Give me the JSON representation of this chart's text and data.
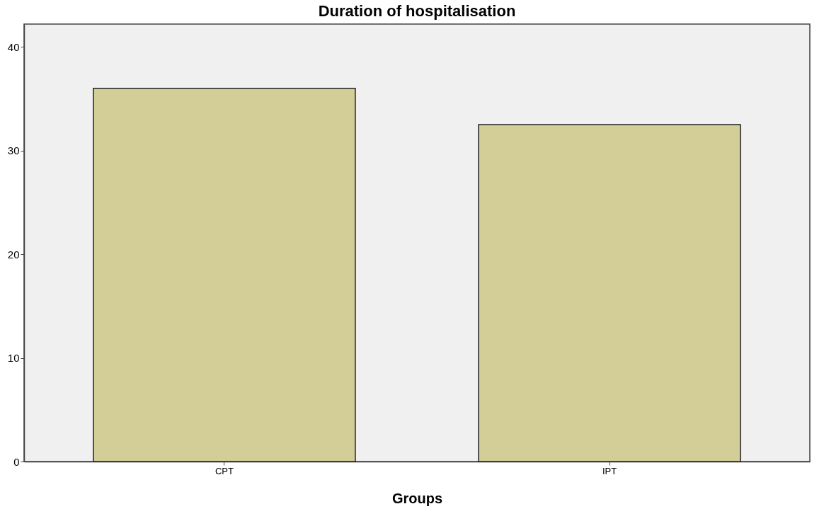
{
  "chart_data": {
    "type": "bar",
    "title": "Duration of hospitalisation",
    "xlabel": "Groups",
    "categories": [
      "CPT",
      "IPT"
    ],
    "values": [
      36,
      32.5
    ],
    "color": "#d3cd98",
    "ylim": [
      0,
      42.2
    ],
    "yticks": [
      0,
      10,
      20,
      30,
      40
    ],
    "grid": false
  }
}
